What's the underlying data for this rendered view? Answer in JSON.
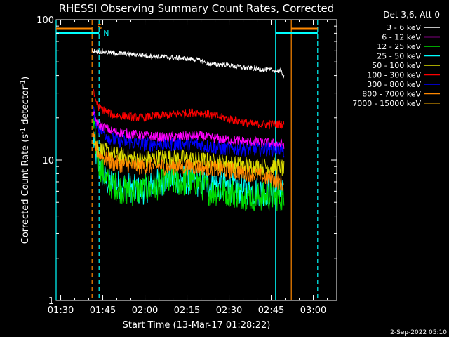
{
  "chart_data": {
    "type": "line",
    "title": "RHESSI Observing Summary Count Rates, Corrected",
    "xlabel": "Start Time (13-Mar-17 01:28:22)",
    "ylabel_main": "Corrected Count Rate (s",
    "ylabel_sup1": "-1",
    "ylabel_mid": " detector",
    "ylabel_sup2": "-1",
    "ylabel_end": ")",
    "x_unit": "minutes since 01:28:22",
    "xlim": [
      0,
      100
    ],
    "ylim": [
      1,
      100
    ],
    "yscale": "log",
    "x_ticks": [
      {
        "v": 1.63,
        "label": "01:30"
      },
      {
        "v": 16.63,
        "label": "01:45"
      },
      {
        "v": 31.63,
        "label": "02:00"
      },
      {
        "v": 46.63,
        "label": "02:15"
      },
      {
        "v": 61.63,
        "label": "02:30"
      },
      {
        "v": 76.63,
        "label": "02:45"
      },
      {
        "v": 91.63,
        "label": "03:00"
      }
    ],
    "y_ticks": [
      {
        "v": 1,
        "label": "1"
      },
      {
        "v": 10,
        "label": "10"
      },
      {
        "v": 100,
        "label": "100"
      }
    ],
    "legend_title": "Det 3,6, Att 0",
    "legend_position": "right",
    "series": [
      {
        "name": "3 - 6 keV",
        "color": "#ffffff",
        "points": [
          [
            12.9,
            60
          ],
          [
            20,
            58
          ],
          [
            30,
            56
          ],
          [
            40,
            54
          ],
          [
            50,
            52
          ],
          [
            55,
            48
          ],
          [
            60,
            48
          ],
          [
            65,
            46
          ],
          [
            70,
            45
          ],
          [
            75,
            44
          ],
          [
            80,
            43
          ],
          [
            81.2,
            40
          ]
        ]
      },
      {
        "name": "6 - 12 keV",
        "color": "#ff00ff",
        "points": [
          [
            13.3,
            21
          ],
          [
            15,
            18
          ],
          [
            20,
            16
          ],
          [
            30,
            15
          ],
          [
            40,
            14.5
          ],
          [
            50,
            15
          ],
          [
            60,
            14
          ],
          [
            70,
            13.5
          ],
          [
            80,
            13
          ],
          [
            81.2,
            13
          ]
        ]
      },
      {
        "name": "12 - 25 keV",
        "color": "#00dd00",
        "points": [
          [
            13.3,
            17
          ],
          [
            15,
            10
          ],
          [
            18,
            7
          ],
          [
            25,
            6
          ],
          [
            30,
            6
          ],
          [
            40,
            7
          ],
          [
            50,
            7
          ],
          [
            55,
            6
          ],
          [
            60,
            6
          ],
          [
            70,
            5.5
          ],
          [
            80,
            5.5
          ],
          [
            81.2,
            5
          ]
        ]
      },
      {
        "name": "25 - 50 keV",
        "color": "#00ffff",
        "points": [
          [
            13.3,
            14
          ],
          [
            15,
            9
          ],
          [
            18,
            7
          ],
          [
            25,
            6.5
          ],
          [
            30,
            6
          ],
          [
            40,
            7.5
          ],
          [
            50,
            7
          ],
          [
            60,
            6.5
          ],
          [
            70,
            6
          ],
          [
            80,
            6
          ],
          [
            81.2,
            5.5
          ]
        ]
      },
      {
        "name": "50 - 100 keV",
        "color": "#dddd00",
        "points": [
          [
            13.3,
            15
          ],
          [
            15,
            12
          ],
          [
            20,
            11
          ],
          [
            30,
            10
          ],
          [
            40,
            10.5
          ],
          [
            50,
            10
          ],
          [
            60,
            9.5
          ],
          [
            70,
            9
          ],
          [
            80,
            9
          ],
          [
            81.2,
            8.5
          ]
        ]
      },
      {
        "name": "100 - 300 keV",
        "color": "#ff0000",
        "points": [
          [
            13.3,
            30
          ],
          [
            15,
            24
          ],
          [
            20,
            21
          ],
          [
            30,
            20
          ],
          [
            40,
            21
          ],
          [
            50,
            22
          ],
          [
            60,
            20
          ],
          [
            70,
            18
          ],
          [
            80,
            18
          ],
          [
            81.2,
            18
          ]
        ]
      },
      {
        "name": "300 - 800 keV",
        "color": "#0000ff",
        "points": [
          [
            13.3,
            22
          ],
          [
            15,
            17
          ],
          [
            20,
            14
          ],
          [
            30,
            13
          ],
          [
            40,
            13
          ],
          [
            50,
            13
          ],
          [
            60,
            12
          ],
          [
            70,
            12
          ],
          [
            80,
            12
          ],
          [
            81.2,
            11.5
          ]
        ]
      },
      {
        "name": "800 - 7000 keV",
        "color": "#ff8800",
        "points": [
          [
            13.3,
            14
          ],
          [
            15,
            11
          ],
          [
            20,
            9.5
          ],
          [
            30,
            9
          ],
          [
            40,
            9
          ],
          [
            50,
            9
          ],
          [
            60,
            8.5
          ],
          [
            70,
            8
          ],
          [
            80,
            7
          ],
          [
            81.2,
            6.5
          ]
        ]
      },
      {
        "name": "7000 - 15000 keV",
        "color": "#aa7700",
        "points": []
      }
    ],
    "markers": [
      {
        "color": "#00ffff",
        "x": 0
      },
      {
        "color": "#ff8800",
        "x": 12.8
      },
      {
        "color": "#00ffff",
        "x": 15.3
      },
      {
        "color": "#00ffff",
        "x": 78.2
      },
      {
        "color": "#ff8800",
        "x": 83.8
      },
      {
        "color": "#00ffff",
        "x": 93.2
      }
    ],
    "flag_labels": [
      {
        "text": "S",
        "color": "#ff8800"
      },
      {
        "text": "N",
        "color": "#00ffff"
      }
    ]
  },
  "footer": {
    "timestamp": "2-Sep-2022 05:10"
  }
}
